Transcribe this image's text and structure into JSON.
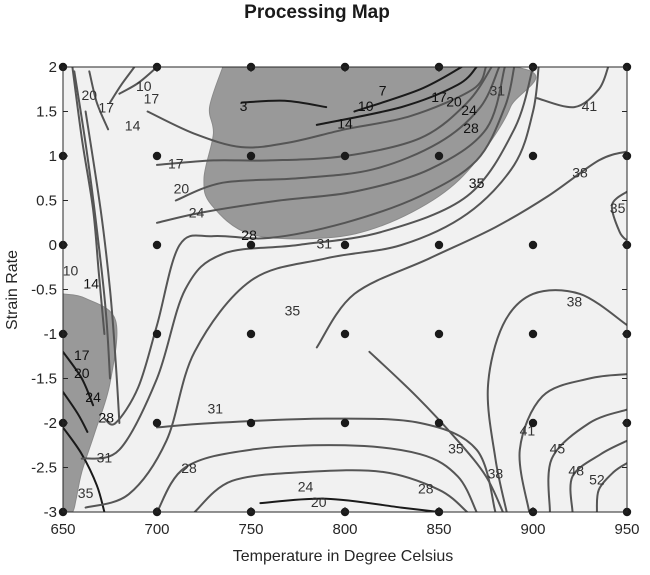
{
  "chart_data": {
    "type": "contour",
    "title": "Processing Map",
    "xlabel": "Temperature in Degree Celsius",
    "ylabel": "Strain Rate",
    "xlim": [
      650,
      950
    ],
    "ylim": [
      -3,
      2
    ],
    "xticks": [
      650,
      700,
      750,
      800,
      850,
      900,
      950
    ],
    "yticks": [
      -3,
      -2.5,
      -2,
      -1.5,
      -1,
      -0.5,
      0,
      0.5,
      1,
      1.5,
      2
    ],
    "xtick_labels": [
      "650",
      "700",
      "750",
      "800",
      "850",
      "900",
      "950"
    ],
    "ytick_labels": [
      "-3",
      "-2.5",
      "-2",
      "-1.5",
      "-1",
      "-0.5",
      "0",
      "0.5",
      "1",
      "1.5",
      "2"
    ],
    "grid_points": {
      "x": [
        650,
        700,
        750,
        800,
        850,
        900,
        950
      ],
      "y": [
        2,
        1,
        0,
        -1,
        -2,
        -3
      ]
    },
    "instability_regions": [
      {
        "name": "upper",
        "polygon": [
          [
            735,
            2
          ],
          [
            890,
            2
          ],
          [
            888,
            1.55
          ],
          [
            870,
            0.95
          ],
          [
            850,
            0.55
          ],
          [
            820,
            0.22
          ],
          [
            790,
            0.08
          ],
          [
            750,
            0.12
          ],
          [
            729,
            0.45
          ],
          [
            725,
            0.75
          ],
          [
            730,
            1.25
          ],
          [
            728,
            1.55
          ],
          [
            735,
            2
          ]
        ]
      },
      {
        "name": "lower-left",
        "polygon": [
          [
            650,
            -0.55
          ],
          [
            662,
            -0.6
          ],
          [
            678,
            -0.85
          ],
          [
            675,
            -1.55
          ],
          [
            667,
            -2.1
          ],
          [
            660,
            -2.55
          ],
          [
            657,
            -2.85
          ],
          [
            655,
            -3
          ],
          [
            650,
            -3
          ]
        ]
      }
    ],
    "contours": [
      {
        "level": 3,
        "points": [
          [
            745,
            1.6
          ],
          [
            768,
            1.62
          ],
          [
            790,
            1.55
          ]
        ]
      },
      {
        "level": 7,
        "points": [
          [
            655,
            2
          ],
          [
            660,
            1.2
          ],
          [
            666,
            0.4
          ],
          [
            669,
            -0.3
          ],
          [
            672,
            -1.0
          ]
        ]
      },
      {
        "level": 7,
        "points": [
          [
            805,
            1.5
          ],
          [
            840,
            1.75
          ],
          [
            862,
            2
          ]
        ]
      },
      {
        "level": 10,
        "points": [
          [
            680,
            1.7
          ],
          [
            690,
            1.82
          ],
          [
            700,
            2
          ]
        ]
      },
      {
        "level": 10,
        "points": [
          [
            656,
            1.95
          ],
          [
            663,
            1.0
          ],
          [
            669,
            0.0
          ],
          [
            673,
            -0.8
          ],
          [
            675,
            -1.5
          ]
        ]
      },
      {
        "level": 10,
        "points": [
          [
            785,
            1.35
          ],
          [
            830,
            1.55
          ],
          [
            860,
            1.8
          ],
          [
            870,
            2
          ]
        ]
      },
      {
        "level": 14,
        "points": [
          [
            662,
            1.5
          ],
          [
            670,
            0.4
          ],
          [
            675,
            -0.5
          ],
          [
            678,
            -1.3
          ],
          [
            680,
            -2.0
          ]
        ]
      },
      {
        "level": 14,
        "points": [
          [
            695,
            1.5
          ],
          [
            720,
            1.25
          ],
          [
            745,
            1.1
          ],
          [
            770,
            1.15
          ],
          [
            800,
            1.3
          ],
          [
            835,
            1.45
          ],
          [
            868,
            1.75
          ],
          [
            875,
            2
          ]
        ]
      },
      {
        "level": 17,
        "points": [
          [
            675,
            1.6
          ],
          [
            681,
            1.8
          ],
          [
            688,
            2
          ]
        ]
      },
      {
        "level": 17,
        "points": [
          [
            650,
            -1.2
          ],
          [
            660,
            -1.5
          ],
          [
            666,
            -1.8
          ]
        ]
      },
      {
        "level": 17,
        "points": [
          [
            700,
            0.9
          ],
          [
            730,
            0.95
          ],
          [
            760,
            0.95
          ],
          [
            800,
            1.0
          ],
          [
            840,
            1.2
          ],
          [
            865,
            1.6
          ],
          [
            878,
            2
          ]
        ]
      },
      {
        "level": 20,
        "points": [
          [
            664,
            1.95
          ],
          [
            668,
            1.6
          ],
          [
            674,
            1.3
          ]
        ]
      },
      {
        "level": 20,
        "points": [
          [
            650,
            -1.65
          ],
          [
            658,
            -1.9
          ],
          [
            663,
            -2.1
          ]
        ]
      },
      {
        "level": 20,
        "points": [
          [
            710,
            0.5
          ],
          [
            735,
            0.7
          ],
          [
            775,
            0.75
          ],
          [
            815,
            0.85
          ],
          [
            850,
            1.15
          ],
          [
            872,
            1.55
          ],
          [
            882,
            2
          ]
        ]
      },
      {
        "level": 20,
        "points": [
          [
            755,
            -2.9
          ],
          [
            790,
            -2.85
          ],
          [
            830,
            -2.95
          ],
          [
            850,
            -3
          ]
        ]
      },
      {
        "level": 24,
        "points": [
          [
            650,
            -2.05
          ],
          [
            660,
            -2.35
          ],
          [
            668,
            -2.7
          ],
          [
            672,
            -3
          ]
        ]
      },
      {
        "level": 24,
        "points": [
          [
            700,
            0.25
          ],
          [
            725,
            0.37
          ],
          [
            765,
            0.5
          ],
          [
            805,
            0.6
          ],
          [
            845,
            0.85
          ],
          [
            875,
            1.3
          ],
          [
            885,
            2
          ]
        ]
      },
      {
        "level": 24,
        "points": [
          [
            720,
            -3
          ],
          [
            740,
            -2.65
          ],
          [
            780,
            -2.55
          ],
          [
            820,
            -2.55
          ],
          [
            850,
            -2.75
          ],
          [
            865,
            -3
          ]
        ]
      },
      {
        "level": 28,
        "points": [
          [
            672,
            -1.95
          ],
          [
            678,
            -2.0
          ],
          [
            690,
            -1.6
          ],
          [
            700,
            -0.9
          ],
          [
            712,
            0.0
          ],
          [
            730,
            0.1
          ],
          [
            760,
            0.08
          ],
          [
            800,
            0.25
          ],
          [
            840,
            0.55
          ],
          [
            870,
            0.95
          ],
          [
            885,
            1.55
          ],
          [
            890,
            2
          ]
        ]
      },
      {
        "level": 28,
        "points": [
          [
            700,
            -3
          ],
          [
            715,
            -2.5
          ],
          [
            750,
            -2.3
          ],
          [
            800,
            -2.25
          ],
          [
            840,
            -2.35
          ],
          [
            860,
            -2.6
          ],
          [
            870,
            -3
          ]
        ]
      },
      {
        "level": 31,
        "points": [
          [
            660,
            -2.4
          ],
          [
            680,
            -2.3
          ],
          [
            700,
            -1.5
          ],
          [
            715,
            -0.5
          ],
          [
            735,
            -0.1
          ],
          [
            775,
            0.0
          ],
          [
            820,
            0.15
          ],
          [
            865,
            0.55
          ],
          [
            890,
            1.3
          ],
          [
            900,
            2
          ]
        ]
      },
      {
        "level": 31,
        "points": [
          [
            700,
            -2.05
          ],
          [
            730,
            -2.0
          ],
          [
            790,
            -1.95
          ],
          [
            840,
            -2.0
          ],
          [
            870,
            -2.3
          ],
          [
            880,
            -3
          ]
        ]
      },
      {
        "level": 35,
        "points": [
          [
            662,
            -2.95
          ],
          [
            685,
            -2.8
          ],
          [
            705,
            -2.2
          ],
          [
            720,
            -1.2
          ],
          [
            750,
            -0.4
          ],
          [
            790,
            -0.15
          ],
          [
            830,
            0.0
          ],
          [
            865,
            0.35
          ],
          [
            890,
            0.9
          ],
          [
            900,
            1.5
          ],
          [
            903,
            2
          ]
        ]
      },
      {
        "level": 35,
        "points": [
          [
            813,
            -1.2
          ],
          [
            838,
            -1.7
          ],
          [
            860,
            -2.2
          ],
          [
            875,
            -2.6
          ],
          [
            884,
            -3
          ]
        ]
      },
      {
        "level": 35,
        "points": [
          [
            950,
            0.6
          ],
          [
            942,
            0.45
          ],
          [
            946,
            0.15
          ],
          [
            950,
            0.05
          ]
        ]
      },
      {
        "level": 38,
        "points": [
          [
            785,
            -1.15
          ],
          [
            805,
            -0.55
          ],
          [
            845,
            -0.15
          ],
          [
            880,
            0.2
          ],
          [
            908,
            0.55
          ],
          [
            935,
            0.95
          ],
          [
            950,
            1.05
          ]
        ]
      },
      {
        "level": 38,
        "points": [
          [
            886,
            -3
          ],
          [
            880,
            -2.4
          ],
          [
            876,
            -1.6
          ],
          [
            884,
            -0.9
          ],
          [
            900,
            -0.55
          ],
          [
            925,
            -0.55
          ],
          [
            950,
            -0.9
          ]
        ]
      },
      {
        "level": 41,
        "points": [
          [
            898,
            -3
          ],
          [
            893,
            -2.3
          ],
          [
            905,
            -1.7
          ],
          [
            930,
            -1.5
          ],
          [
            950,
            -1.45
          ]
        ]
      },
      {
        "level": 41,
        "points": [
          [
            902,
            1.65
          ],
          [
            922,
            1.55
          ],
          [
            935,
            1.75
          ],
          [
            940,
            2
          ]
        ]
      },
      {
        "level": 45,
        "points": [
          [
            909,
            -3
          ],
          [
            910,
            -2.4
          ],
          [
            930,
            -2.0
          ],
          [
            950,
            -1.85
          ]
        ]
      },
      {
        "level": 48,
        "points": [
          [
            921,
            -3
          ],
          [
            921,
            -2.6
          ],
          [
            936,
            -2.35
          ],
          [
            950,
            -2.2
          ]
        ]
      },
      {
        "level": 52,
        "points": [
          [
            934,
            -3
          ],
          [
            935,
            -2.75
          ],
          [
            943,
            -2.55
          ],
          [
            950,
            -2.45
          ]
        ]
      }
    ],
    "contour_labels": [
      {
        "text": "20",
        "x": 664,
        "y": 1.67
      },
      {
        "text": "17",
        "x": 673,
        "y": 1.53
      },
      {
        "text": "10",
        "x": 693,
        "y": 1.77
      },
      {
        "text": "17",
        "x": 697,
        "y": 1.63
      },
      {
        "text": "14",
        "x": 687,
        "y": 1.33
      },
      {
        "text": "3",
        "x": 746,
        "y": 1.55
      },
      {
        "text": "7",
        "x": 820,
        "y": 1.72
      },
      {
        "text": "10",
        "x": 811,
        "y": 1.55
      },
      {
        "text": "14",
        "x": 800,
        "y": 1.35
      },
      {
        "text": "17",
        "x": 850,
        "y": 1.65
      },
      {
        "text": "20",
        "x": 858,
        "y": 1.6
      },
      {
        "text": "24",
        "x": 866,
        "y": 1.5
      },
      {
        "text": "28",
        "x": 867,
        "y": 1.3
      },
      {
        "text": "31",
        "x": 881,
        "y": 1.72
      },
      {
        "text": "41",
        "x": 930,
        "y": 1.55
      },
      {
        "text": "17",
        "x": 710,
        "y": 0.9
      },
      {
        "text": "20",
        "x": 713,
        "y": 0.62
      },
      {
        "text": "24",
        "x": 721,
        "y": 0.35
      },
      {
        "text": "28",
        "x": 749,
        "y": 0.1
      },
      {
        "text": "31",
        "x": 789,
        "y": 0.0
      },
      {
        "text": "35",
        "x": 870,
        "y": 0.68
      },
      {
        "text": "38",
        "x": 925,
        "y": 0.8
      },
      {
        "text": "35",
        "x": 945,
        "y": 0.4
      },
      {
        "text": "10",
        "x": 654,
        "y": -0.3
      },
      {
        "text": "14",
        "x": 665,
        "y": -0.45
      },
      {
        "text": "35",
        "x": 772,
        "y": -0.75
      },
      {
        "text": "38",
        "x": 922,
        "y": -0.65
      },
      {
        "text": "17",
        "x": 660,
        "y": -1.25
      },
      {
        "text": "20",
        "x": 660,
        "y": -1.45
      },
      {
        "text": "24",
        "x": 666,
        "y": -1.72
      },
      {
        "text": "28",
        "x": 673,
        "y": -1.95
      },
      {
        "text": "31",
        "x": 731,
        "y": -1.85
      },
      {
        "text": "41",
        "x": 897,
        "y": -2.1
      },
      {
        "text": "35",
        "x": 859,
        "y": -2.3
      },
      {
        "text": "45",
        "x": 913,
        "y": -2.3
      },
      {
        "text": "31",
        "x": 672,
        "y": -2.4
      },
      {
        "text": "28",
        "x": 717,
        "y": -2.52
      },
      {
        "text": "38",
        "x": 880,
        "y": -2.58
      },
      {
        "text": "48",
        "x": 923,
        "y": -2.55
      },
      {
        "text": "24",
        "x": 779,
        "y": -2.73
      },
      {
        "text": "28",
        "x": 843,
        "y": -2.75
      },
      {
        "text": "52",
        "x": 934,
        "y": -2.65
      },
      {
        "text": "35",
        "x": 662,
        "y": -2.8
      },
      {
        "text": "20",
        "x": 786,
        "y": -2.9
      }
    ],
    "colors": {
      "background": "#f1f1f1",
      "instability_region": "#999999",
      "contour_outside": "#555555",
      "contour_inside": "#1a1a1a",
      "grid_point": "#1a1a1a",
      "axis": "#262626"
    }
  }
}
